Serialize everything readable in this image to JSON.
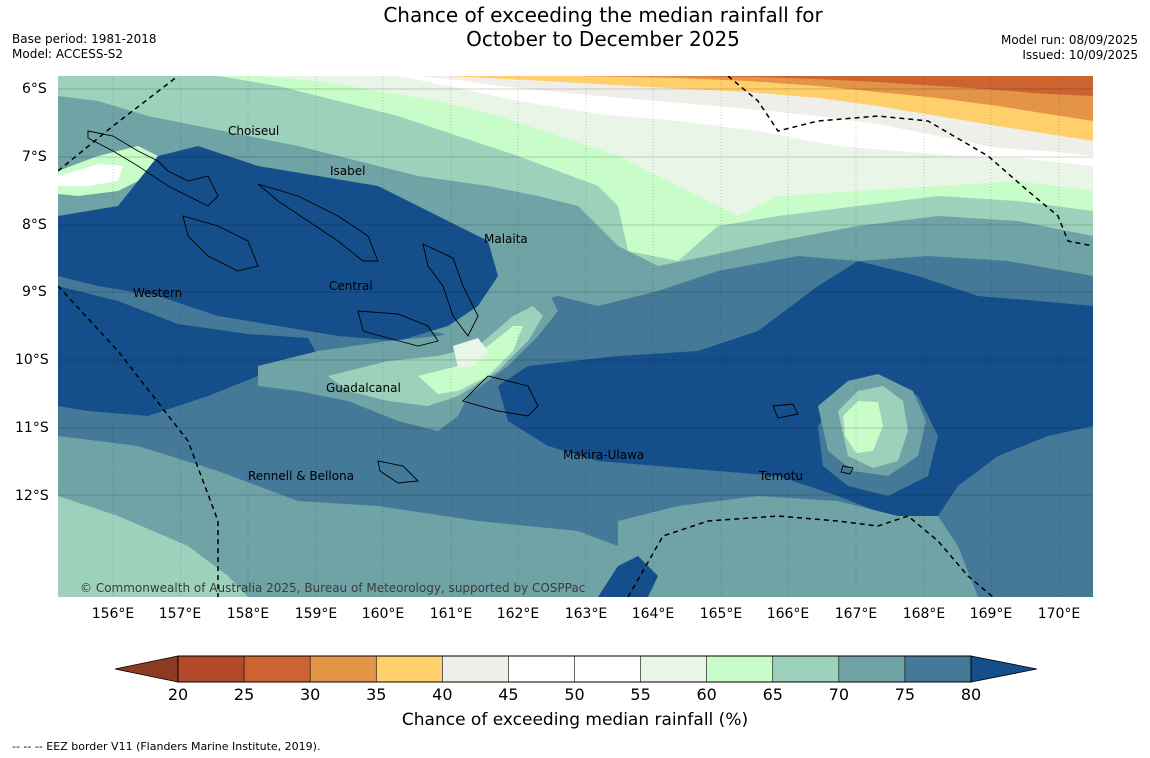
{
  "header": {
    "title_line1": "Chance of exceeding the median rainfall for",
    "title_line2": "October to December 2025",
    "base_period": "Base period: 1981-2018",
    "model": "Model: ACCESS-S2",
    "model_run": "Model run: 08/09/2025",
    "issued": "Issued: 10/09/2025"
  },
  "map": {
    "lat_labels": [
      "6°S",
      "7°S",
      "8°S",
      "9°S",
      "10°S",
      "11°S",
      "12°S"
    ],
    "lon_labels": [
      "156°E",
      "157°E",
      "158°E",
      "159°E",
      "160°E",
      "161°E",
      "162°E",
      "163°E",
      "164°E",
      "165°E",
      "166°E",
      "167°E",
      "168°E",
      "169°E",
      "170°E"
    ],
    "regions": [
      "Choiseul",
      "Isabel",
      "Malaita",
      "Western",
      "Central",
      "Guadalcanal",
      "Makira-Ulawa",
      "Rennell & Bellona",
      "Temotu"
    ],
    "copyright": "© Commonwealth of Australia 2025, Bureau of Meteorology, supported by COSPPac"
  },
  "colorbar": {
    "ticks": [
      "20",
      "25",
      "30",
      "35",
      "40",
      "45",
      "50",
      "55",
      "60",
      "65",
      "70",
      "75",
      "80"
    ],
    "label": "Chance of exceeding median rainfall (%)",
    "colors": {
      "below20": "#8c3b22",
      "20_25": "#b4482a",
      "25_30": "#cd6331",
      "30_35": "#e39447",
      "35_40": "#ffcf6b",
      "40_45": "#f0eee8",
      "45_50": "#ffffff",
      "50_55": "#ffffff",
      "55_60": "#e9f5e6",
      "60_65": "#c8fcc8",
      "65_70": "#9dd1bb",
      "70_75": "#6fa3a6",
      "75_80": "#457998",
      "above80": "#144f8b"
    }
  },
  "footnote": "--  --  -- EEZ border V11 (Flanders Marine Institute, 2019)."
}
